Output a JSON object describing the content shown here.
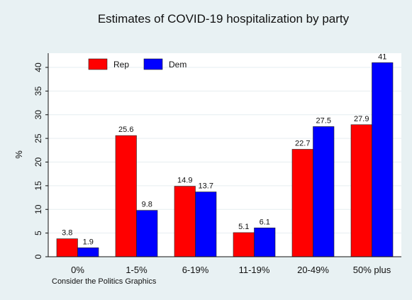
{
  "chart_data": {
    "type": "bar",
    "title": "Estimates of COVID-19 hospitalization by party",
    "xlabel": "",
    "ylabel": "%",
    "categories": [
      "0%",
      "1-5%",
      "6-19%",
      "11-19%",
      "20-49%",
      "50% plus"
    ],
    "highlight_category_index": 1,
    "highlight_color": "#e8501f",
    "series": [
      {
        "name": "Rep",
        "color": "#ff0000",
        "values": [
          3.8,
          25.6,
          14.9,
          5.1,
          22.7,
          27.9
        ],
        "labels": [
          "3.8",
          "25.6",
          "14.9",
          "5.1",
          "22.7",
          "27.9"
        ]
      },
      {
        "name": "Dem",
        "color": "#0000ff",
        "values": [
          1.9,
          9.8,
          13.7,
          6.1,
          27.5,
          41
        ],
        "labels": [
          "1.9",
          "9.8",
          "13.7",
          "6.1",
          "27.5",
          "41"
        ]
      }
    ],
    "ylim": [
      0,
      43
    ],
    "yticks": [
      0,
      5,
      10,
      15,
      20,
      25,
      30,
      35,
      40
    ],
    "ytick_labels": [
      "0",
      "5",
      "10",
      "15",
      "20",
      "25",
      "30",
      "35",
      "40"
    ],
    "grid": true,
    "legend_position": "top-left",
    "note": "Consider the Politics Graphics",
    "plot_background": "#ffffff",
    "figure_background": "#e8f1f3"
  }
}
